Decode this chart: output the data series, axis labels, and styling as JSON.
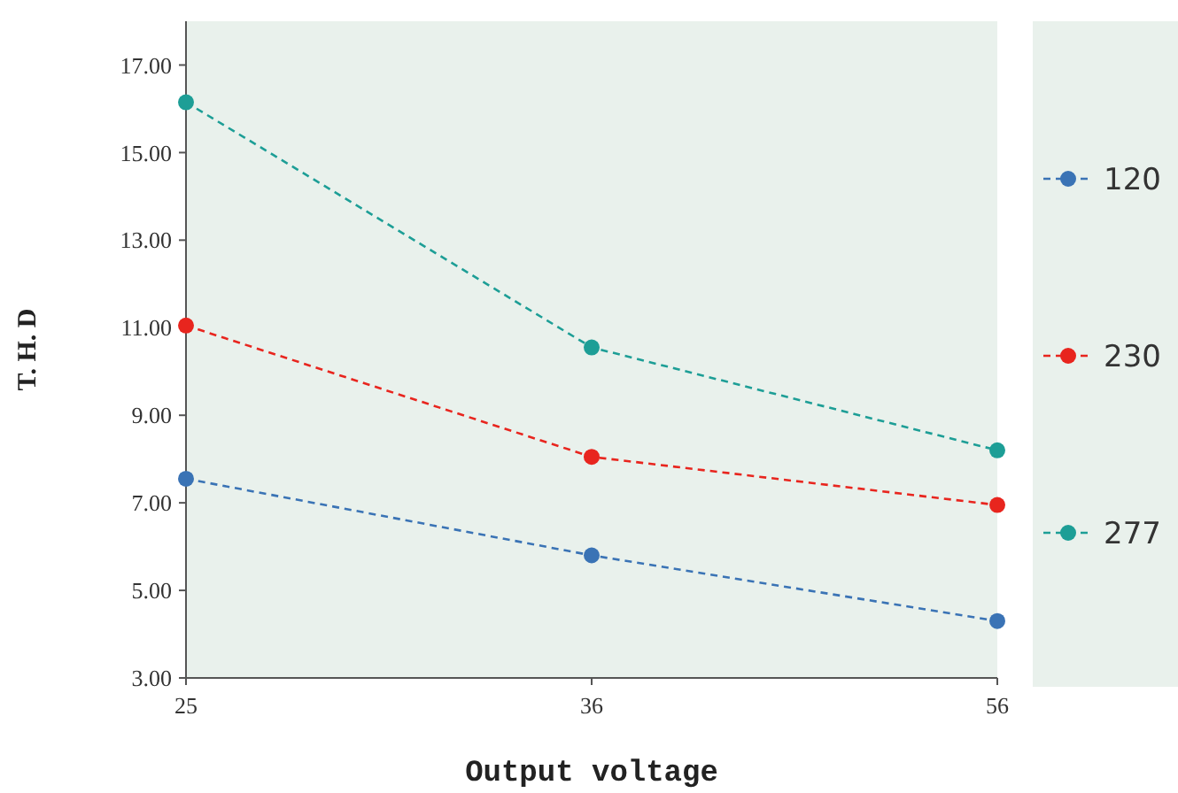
{
  "chart_data": {
    "type": "line",
    "xlabel": "Output voltage",
    "ylabel": "T. H. D",
    "categories": [
      "25",
      "36",
      "56"
    ],
    "series": [
      {
        "name": "120",
        "color": "#3a73b5",
        "values": [
          7.55,
          5.8,
          4.3
        ]
      },
      {
        "name": "230",
        "color": "#e8251e",
        "values": [
          11.05,
          8.05,
          6.95
        ]
      },
      {
        "name": "277",
        "color": "#1d9e96",
        "values": [
          16.15,
          10.55,
          8.2
        ]
      }
    ],
    "ylim": [
      3,
      18
    ],
    "yticks": [
      {
        "value": 3,
        "label": "3.00"
      },
      {
        "value": 5,
        "label": "5.00"
      },
      {
        "value": 7,
        "label": "7.00"
      },
      {
        "value": 9,
        "label": "9.00"
      },
      {
        "value": 11,
        "label": "11.00"
      },
      {
        "value": 13,
        "label": "13.00"
      },
      {
        "value": 15,
        "label": "15.00"
      },
      {
        "value": 17,
        "label": "17.00"
      }
    ],
    "grid": false,
    "legend": "right",
    "marker": "circle",
    "line_style": "dashed"
  }
}
